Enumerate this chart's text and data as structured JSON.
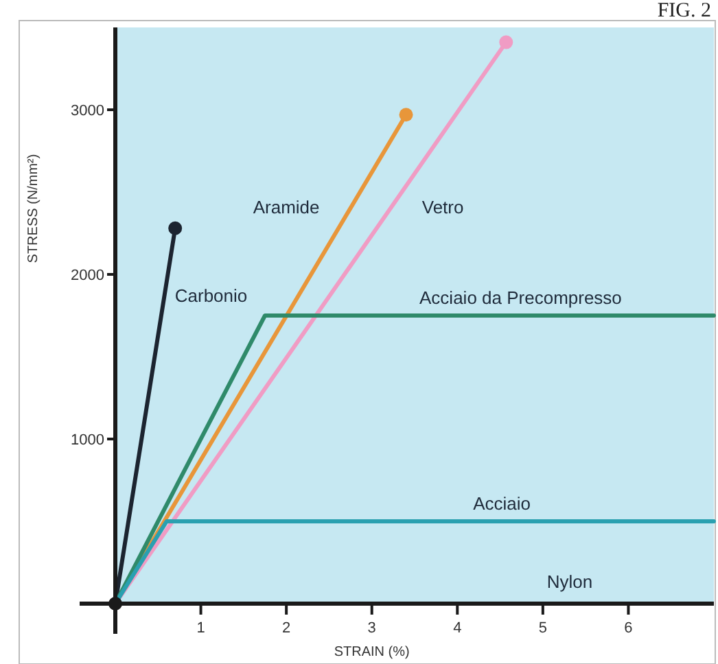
{
  "chart_data": {
    "type": "line",
    "title": "FIG. 2",
    "xlabel": "STRAIN (%)",
    "ylabel": "STRESS (N/mm²)",
    "xlim": [
      0,
      7
    ],
    "ylim": [
      0,
      3500
    ],
    "xticks": [
      1,
      2,
      3,
      4,
      5,
      6
    ],
    "yticks": [
      {
        "value": 0,
        "label": null
      },
      1000,
      2000,
      3000
    ],
    "grid": false,
    "line_style": "solid",
    "series": [
      {
        "name": "Carbonio",
        "color": "#1c2430",
        "marker": "circle",
        "x": [
          0,
          0.7
        ],
        "values": [
          0,
          2280
        ]
      },
      {
        "name": "Aramide",
        "color": "#e8963a",
        "marker": "circle",
        "x": [
          0,
          3.4
        ],
        "values": [
          0,
          2970
        ]
      },
      {
        "name": "Vetro",
        "color": "#f09cc4",
        "marker": "circle",
        "x": [
          0,
          4.57
        ],
        "values": [
          0,
          3410
        ]
      },
      {
        "name": "Acciaio da Precompresso",
        "color": "#2f8a6a",
        "marker": "none",
        "x": [
          0,
          1.75,
          7
        ],
        "values": [
          0,
          1750,
          1750
        ]
      },
      {
        "name": "Acciaio",
        "color": "#2aa0b0",
        "marker": "none",
        "x": [
          0,
          0.6,
          7
        ],
        "values": [
          0,
          500,
          500
        ]
      }
    ],
    "annotations": [
      "Nylon"
    ]
  }
}
